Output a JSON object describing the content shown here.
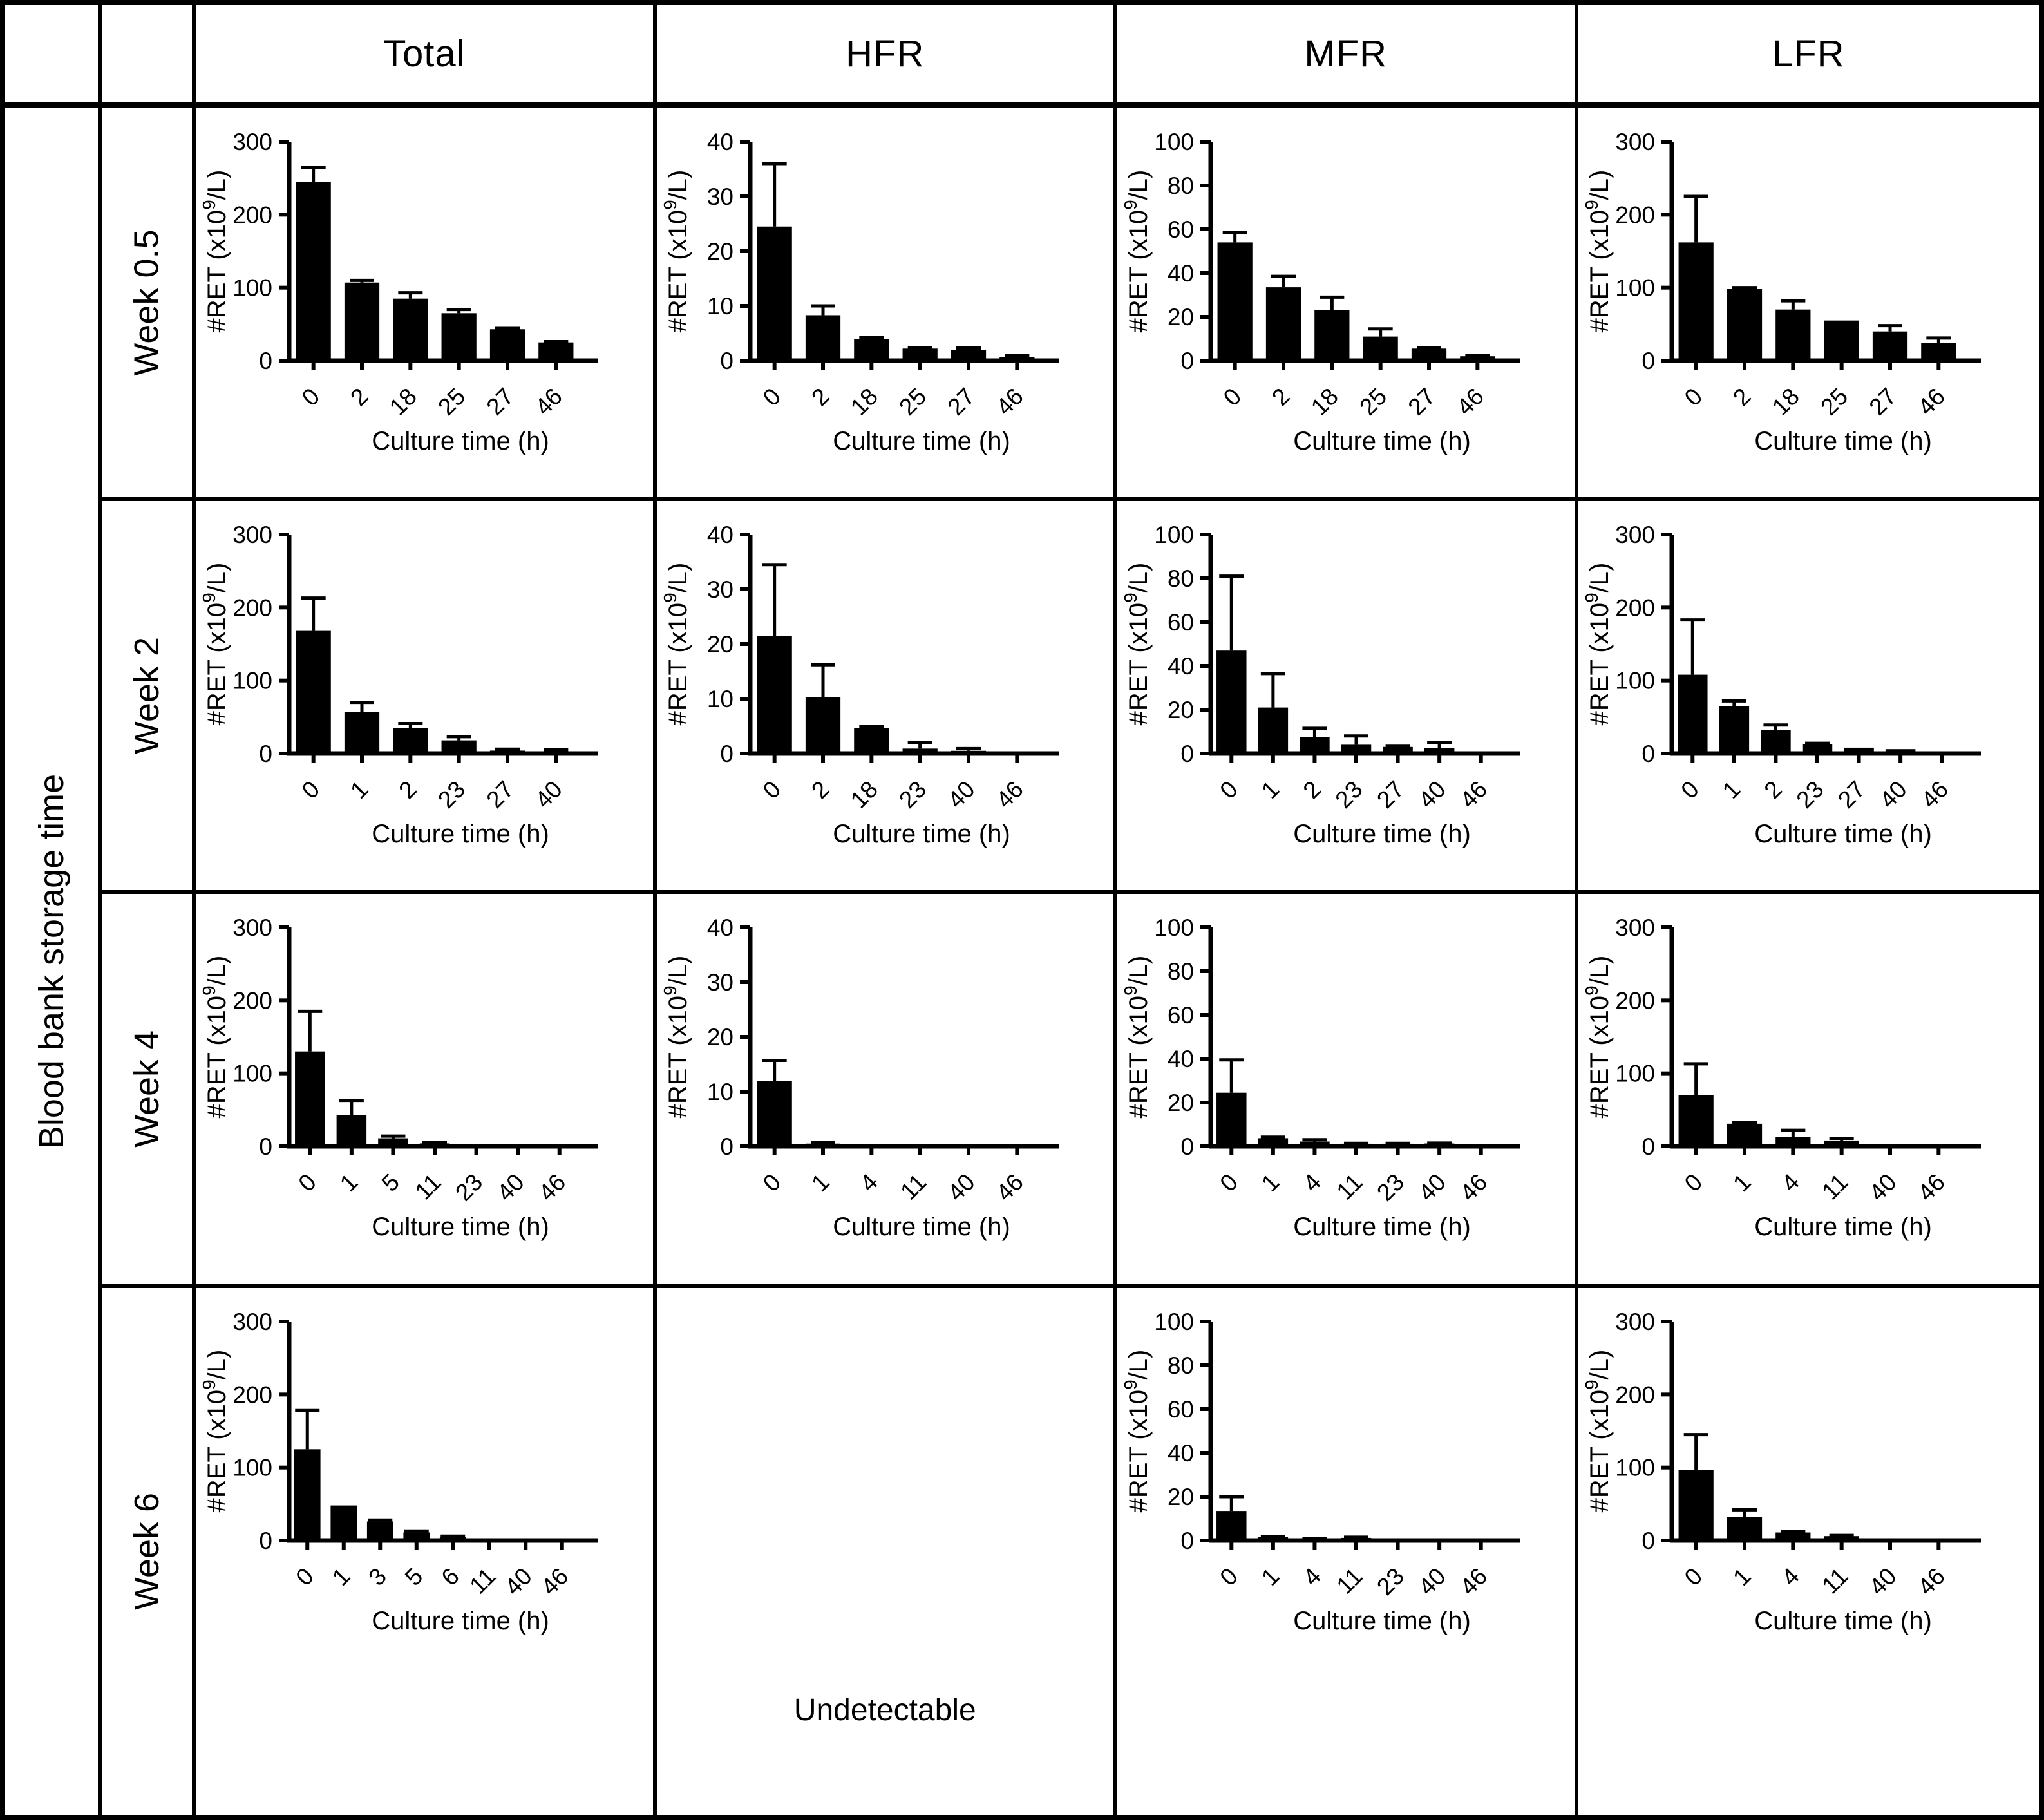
{
  "table": {
    "row_axis_label": "Blood bank storage time",
    "column_headers": [
      "Total",
      "HFR",
      "MFR",
      "LFR"
    ],
    "row_headers": [
      "Week 0.5",
      "Week 2",
      "Week 4",
      "Week 6"
    ]
  },
  "chart_defaults": {
    "bar_color": "#000000",
    "axis_color": "#000000",
    "xlabel": "Culture time (h)",
    "ylabel": "#RET (x10^9/L)"
  },
  "chart_data": [
    {
      "row_label": "Week 0.5",
      "col_label": "Total",
      "type": "bar",
      "xlabel": "Culture time (h)",
      "ylabel": "#RET (x10^9/L)",
      "categories": [
        "0",
        "2",
        "18",
        "25",
        "27",
        "46"
      ],
      "values": [
        245,
        107,
        85,
        65,
        43,
        25
      ],
      "errors": [
        20,
        3,
        8,
        5,
        2,
        1
      ],
      "ylim": [
        0,
        300
      ],
      "yticks": [
        0,
        100,
        200,
        300
      ]
    },
    {
      "row_label": "Week 0.5",
      "col_label": "HFR",
      "type": "bar",
      "xlabel": "Culture time (h)",
      "ylabel": "#RET (x10^9/L)",
      "categories": [
        "0",
        "2",
        "18",
        "25",
        "27",
        "46"
      ],
      "values": [
        24.5,
        8.3,
        4,
        2.2,
        2,
        0.7
      ],
      "errors": [
        11.5,
        1.7,
        0.3,
        0.2,
        0.3,
        0.2
      ],
      "ylim": [
        0,
        40
      ],
      "yticks": [
        0,
        10,
        20,
        30,
        40
      ]
    },
    {
      "row_label": "Week 0.5",
      "col_label": "MFR",
      "type": "bar",
      "xlabel": "Culture time (h)",
      "ylabel": "#RET (x10^9/L)",
      "categories": [
        "0",
        "2",
        "18",
        "25",
        "27",
        "46"
      ],
      "values": [
        54,
        33.5,
        23,
        11,
        5.5,
        2
      ],
      "errors": [
        4.5,
        5,
        6,
        3.5,
        0.4,
        0.5
      ],
      "ylim": [
        0,
        100
      ],
      "yticks": [
        0,
        20,
        40,
        60,
        80,
        100
      ]
    },
    {
      "row_label": "Week 0.5",
      "col_label": "LFR",
      "type": "bar",
      "xlabel": "Culture time (h)",
      "ylabel": "#RET (x10^9/L)",
      "categories": [
        "0",
        "2",
        "18",
        "25",
        "27",
        "46"
      ],
      "values": [
        162,
        98,
        70,
        55,
        40,
        24
      ],
      "errors": [
        63,
        2,
        12,
        0,
        8,
        7
      ],
      "ylim": [
        0,
        300
      ],
      "yticks": [
        0,
        100,
        200,
        300
      ]
    },
    {
      "row_label": "Week 2",
      "col_label": "Total",
      "type": "bar",
      "xlabel": "Culture time (h)",
      "ylabel": "#RET (x10^9/L)",
      "categories": [
        "0",
        "1",
        "2",
        "23",
        "27",
        "40"
      ],
      "values": [
        168,
        57,
        35,
        18,
        4,
        2
      ],
      "errors": [
        45,
        13,
        6,
        5,
        2,
        3
      ],
      "ylim": [
        0,
        300
      ],
      "yticks": [
        0,
        100,
        200,
        300
      ]
    },
    {
      "row_label": "Week 2",
      "col_label": "HFR",
      "type": "bar",
      "xlabel": "Culture time (h)",
      "ylabel": "#RET (x10^9/L)",
      "categories": [
        "0",
        "2",
        "18",
        "23",
        "40",
        "46"
      ],
      "values": [
        21.5,
        10.3,
        4.7,
        0.9,
        0.5,
        0
      ],
      "errors": [
        13,
        5.9,
        0.3,
        1.1,
        0.4,
        0
      ],
      "ylim": [
        0,
        40
      ],
      "yticks": [
        0,
        10,
        20,
        30,
        40
      ]
    },
    {
      "row_label": "Week 2",
      "col_label": "MFR",
      "type": "bar",
      "xlabel": "Culture time (h)",
      "ylabel": "#RET (x10^9/L)",
      "categories": [
        "0",
        "1",
        "2",
        "23",
        "27",
        "40",
        "46"
      ],
      "values": [
        47,
        21,
        7.5,
        4,
        3,
        2.5,
        0
      ],
      "errors": [
        34,
        15.5,
        4,
        4,
        0.3,
        2.5,
        0
      ],
      "ylim": [
        0,
        100
      ],
      "yticks": [
        0,
        20,
        40,
        60,
        80,
        100
      ]
    },
    {
      "row_label": "Week 2",
      "col_label": "LFR",
      "type": "bar",
      "xlabel": "Culture time (h)",
      "ylabel": "#RET (x10^9/L)",
      "categories": [
        "0",
        "1",
        "2",
        "23",
        "27",
        "40",
        "46"
      ],
      "values": [
        108,
        65,
        32,
        13,
        8,
        6,
        0
      ],
      "errors": [
        75,
        7,
        7,
        1,
        0,
        0,
        0
      ],
      "ylim": [
        0,
        300
      ],
      "yticks": [
        0,
        100,
        200,
        300
      ]
    },
    {
      "row_label": "Week 4",
      "col_label": "Total",
      "type": "bar",
      "xlabel": "Culture time (h)",
      "ylabel": "#RET (x10^9/L)",
      "categories": [
        "0",
        "1",
        "5",
        "11",
        "23",
        "40",
        "46"
      ],
      "values": [
        130,
        43,
        11,
        4,
        0,
        0,
        0
      ],
      "errors": [
        55,
        20,
        3,
        1,
        0,
        0,
        0
      ],
      "ylim": [
        0,
        300
      ],
      "yticks": [
        0,
        100,
        200,
        300
      ]
    },
    {
      "row_label": "Week 4",
      "col_label": "HFR",
      "type": "bar",
      "xlabel": "Culture time (h)",
      "ylabel": "#RET (x10^9/L)",
      "categories": [
        "0",
        "1",
        "4",
        "11",
        "40",
        "46"
      ],
      "values": [
        12,
        0.5,
        0,
        0,
        0,
        0
      ],
      "errors": [
        3.7,
        0.2,
        0,
        0,
        0,
        0
      ],
      "ylim": [
        0,
        40
      ],
      "yticks": [
        0,
        10,
        20,
        30,
        40
      ]
    },
    {
      "row_label": "Week 4",
      "col_label": "MFR",
      "type": "bar",
      "xlabel": "Culture time (h)",
      "ylabel": "#RET (x10^9/L)",
      "categories": [
        "0",
        "1",
        "4",
        "11",
        "23",
        "40",
        "46"
      ],
      "values": [
        24.5,
        3.7,
        2.2,
        1.2,
        1.2,
        1.3,
        0
      ],
      "errors": [
        15,
        0.5,
        0.8,
        0.2,
        0.2,
        0.2,
        0
      ],
      "ylim": [
        0,
        100
      ],
      "yticks": [
        0,
        20,
        40,
        60,
        80,
        100
      ]
    },
    {
      "row_label": "Week 4",
      "col_label": "LFR",
      "type": "bar",
      "xlabel": "Culture time (h)",
      "ylabel": "#RET (x10^9/L)",
      "categories": [
        "0",
        "1",
        "4",
        "11",
        "40",
        "46"
      ],
      "values": [
        70,
        31,
        13,
        8,
        0,
        0
      ],
      "errors": [
        43,
        2,
        9,
        3,
        0,
        0
      ],
      "ylim": [
        0,
        300
      ],
      "yticks": [
        0,
        100,
        200,
        300
      ]
    },
    {
      "row_label": "Week 6",
      "col_label": "Total",
      "type": "bar",
      "xlabel": "Culture time (h)",
      "ylabel": "#RET (x10^9/L)",
      "categories": [
        "0",
        "1",
        "3",
        "5",
        "6",
        "11",
        "40",
        "46"
      ],
      "values": [
        125,
        48,
        26,
        11,
        5,
        0,
        0,
        0
      ],
      "errors": [
        53,
        0,
        2,
        2,
        1,
        0,
        0,
        0
      ],
      "ylim": [
        0,
        300
      ],
      "yticks": [
        0,
        100,
        200,
        300
      ]
    },
    {
      "row_label": "Week 6",
      "col_label": "HFR",
      "type": "text",
      "label": "Undetectable"
    },
    {
      "row_label": "Week 6",
      "col_label": "MFR",
      "type": "bar",
      "xlabel": "Culture time (h)",
      "ylabel": "#RET (x10^9/L)",
      "categories": [
        "0",
        "1",
        "4",
        "11",
        "23",
        "40",
        "46"
      ],
      "values": [
        13.5,
        1.5,
        0.7,
        1.2,
        0,
        0,
        0
      ],
      "errors": [
        6.5,
        0.3,
        0.2,
        0.3,
        0,
        0,
        0
      ],
      "ylim": [
        0,
        100
      ],
      "yticks": [
        0,
        20,
        40,
        60,
        80,
        100
      ]
    },
    {
      "row_label": "Week 6",
      "col_label": "LFR",
      "type": "bar",
      "xlabel": "Culture time (h)",
      "ylabel": "#RET (x10^9/L)",
      "categories": [
        "0",
        "1",
        "4",
        "11",
        "40",
        "46"
      ],
      "values": [
        97,
        32,
        11,
        6,
        0,
        0
      ],
      "errors": [
        48,
        10,
        1,
        1,
        0,
        0
      ],
      "ylim": [
        0,
        300
      ],
      "yticks": [
        0,
        100,
        200,
        300
      ]
    }
  ]
}
